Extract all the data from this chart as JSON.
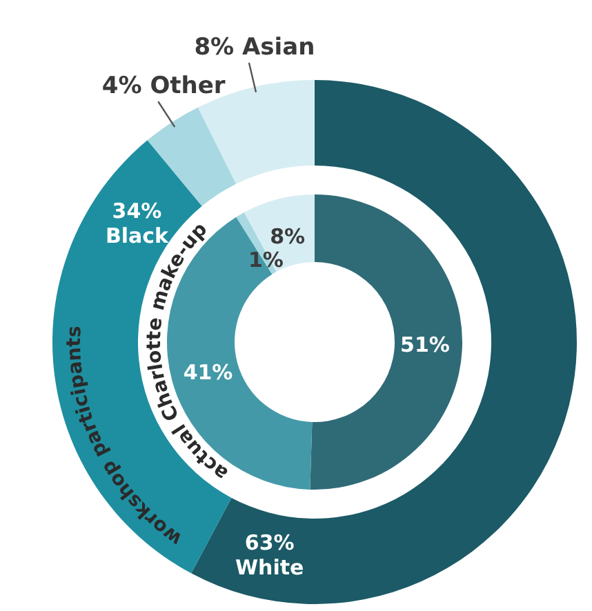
{
  "chart_data": {
    "type": "donut",
    "categories": [
      "White",
      "Black",
      "Other",
      "Asian"
    ],
    "series": [
      {
        "name": "workshop participants",
        "values": [
          63,
          34,
          4,
          8
        ],
        "value_labels": [
          "63%",
          "34%",
          "4%",
          "8%"
        ],
        "colors": [
          "#1b5a66",
          "#1e8fa0",
          "#a8d8e1",
          "#d6edf3"
        ]
      },
      {
        "name": "actual Charlotte make-up",
        "values": [
          51,
          41,
          1,
          8
        ],
        "value_labels": [
          "51%",
          "41%",
          "1%",
          "8%"
        ],
        "colors": [
          "#2f6b77",
          "#4499a8",
          "#a8d8e1",
          "#d6edf3"
        ]
      }
    ]
  }
}
